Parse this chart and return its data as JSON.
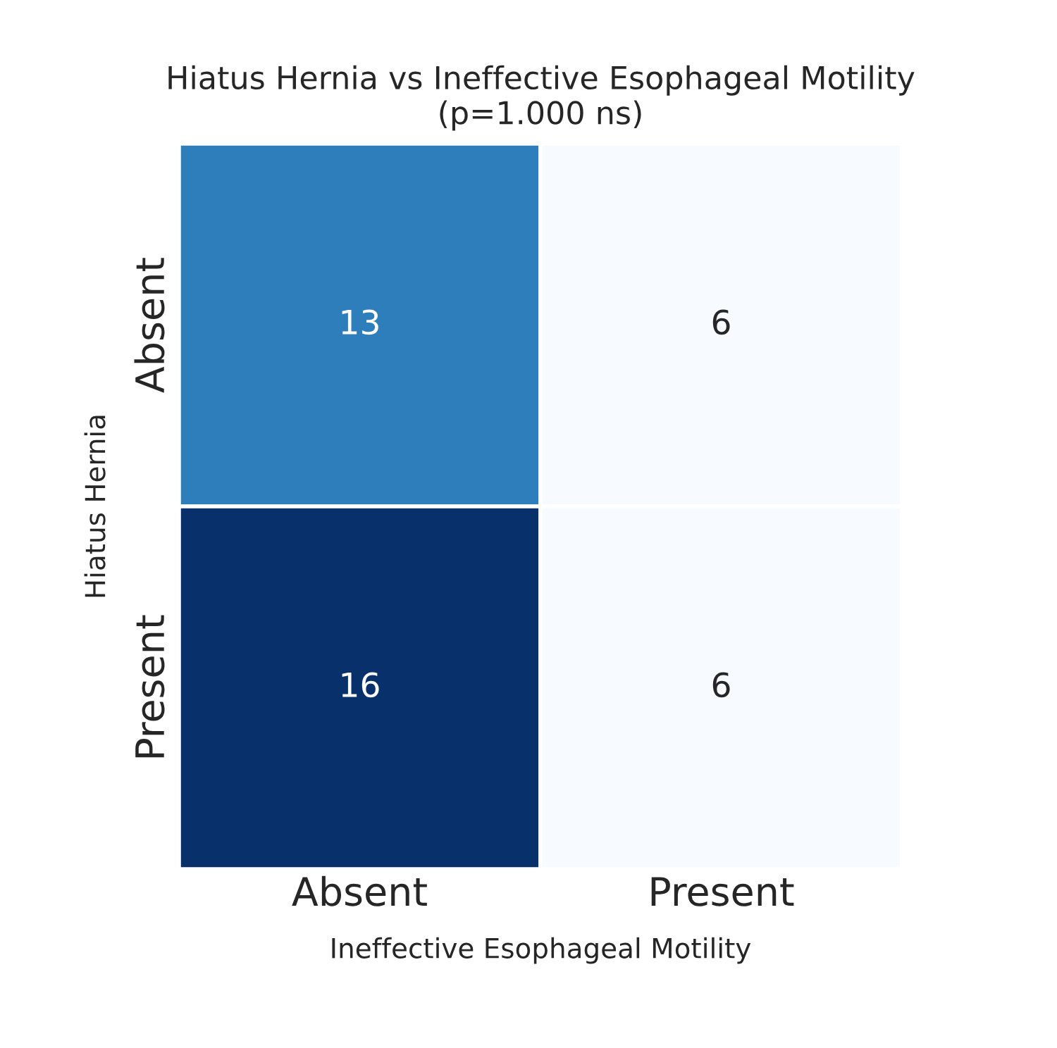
{
  "chart_data": {
    "type": "heatmap",
    "title": "Hiatus Hernia vs Ineffective Esophageal Motility",
    "subtitle": "(p=1.000 ns)",
    "xlabel": "Ineffective Esophageal Motility",
    "ylabel": "Hiatus Hernia",
    "categories": [
      "Absent",
      "Present"
    ],
    "y_categories": [
      "Absent",
      "Present"
    ],
    "cells": [
      [
        13,
        6
      ],
      [
        16,
        6
      ]
    ],
    "data_labels": true
  }
}
